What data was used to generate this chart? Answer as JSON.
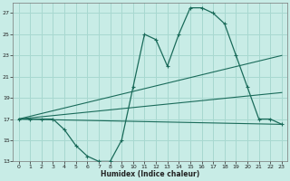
{
  "xlabel": "Humidex (Indice chaleur)",
  "xlim": [
    -0.5,
    23.5
  ],
  "ylim": [
    13,
    28
  ],
  "yticks": [
    13,
    15,
    17,
    19,
    21,
    23,
    25,
    27
  ],
  "xticks": [
    0,
    1,
    2,
    3,
    4,
    5,
    6,
    7,
    8,
    9,
    10,
    11,
    12,
    13,
    14,
    15,
    16,
    17,
    18,
    19,
    20,
    21,
    22,
    23
  ],
  "background_color": "#c8ece6",
  "grid_color": "#a8d8d0",
  "line_color": "#1a6b5a",
  "line1_x": [
    0,
    1,
    2,
    3,
    4,
    5,
    6,
    7,
    8,
    9,
    10,
    11,
    12,
    13,
    14,
    15,
    16,
    17,
    18,
    19,
    20,
    21,
    22,
    23
  ],
  "line1_y": [
    17,
    17,
    17,
    17,
    16,
    14.5,
    13.5,
    13,
    13,
    15,
    20,
    25,
    24.5,
    22,
    25,
    27.5,
    27.5,
    27,
    26,
    23,
    20,
    17,
    17,
    16.5
  ],
  "line2_x": [
    0,
    23
  ],
  "line2_y": [
    17,
    23
  ],
  "line3_x": [
    0,
    23
  ],
  "line3_y": [
    17,
    19.5
  ],
  "line4_x": [
    0,
    23
  ],
  "line4_y": [
    17,
    16.5
  ],
  "font_color": "#222222"
}
